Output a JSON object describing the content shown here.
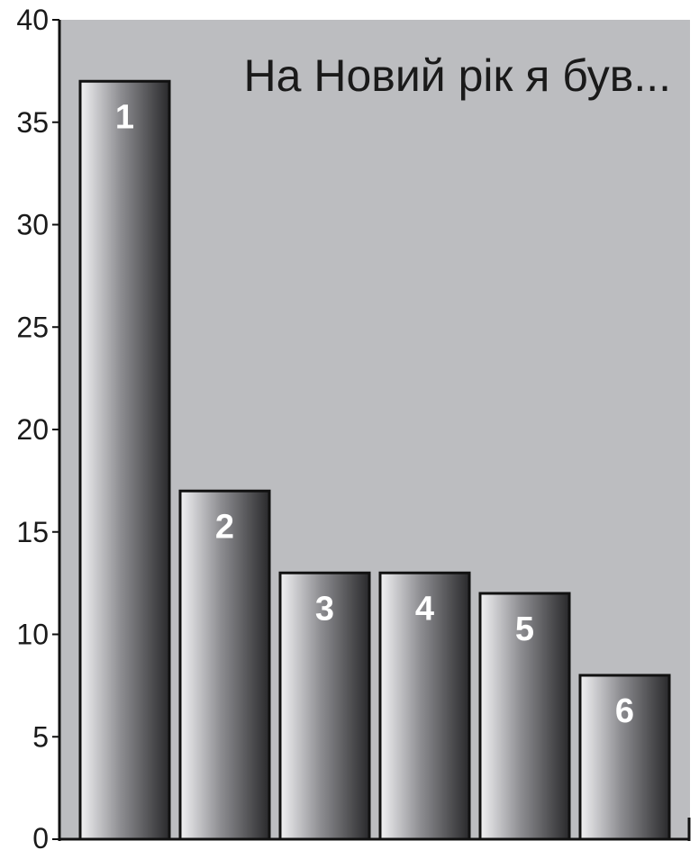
{
  "chart_data": {
    "type": "bar",
    "title": "На Новий рік я був...",
    "xlabel": "",
    "ylabel": "",
    "categories": [
      "1",
      "2",
      "3",
      "4",
      "5",
      "6"
    ],
    "values": [
      37,
      17,
      13,
      13,
      12,
      8
    ],
    "ylim": [
      0,
      40
    ],
    "yticks": [
      0,
      5,
      10,
      15,
      20,
      25,
      30,
      35,
      40
    ],
    "grid": false,
    "colors": {
      "plot_background": "#bcbdc0",
      "bar_light": "#f2f2f4",
      "bar_mid": "#8e8e92",
      "bar_dark": "#2a2a2c",
      "bar_outline": "#111111",
      "axis": "#111111",
      "bar_label": "#ffffff"
    }
  }
}
